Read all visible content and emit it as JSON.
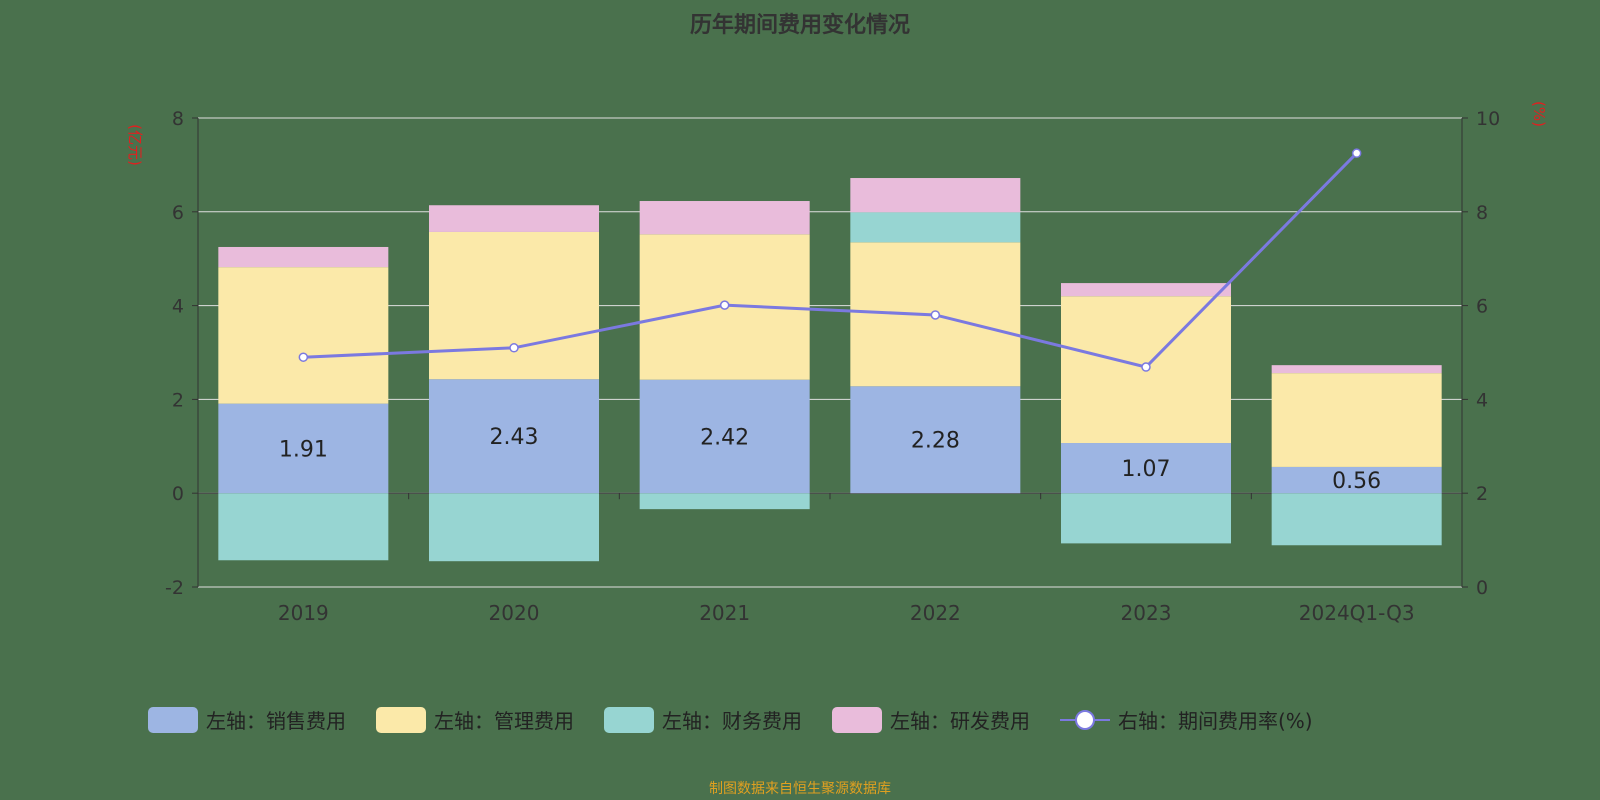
{
  "chart_data": {
    "type": "bar",
    "title": "历年期间费用变化情况",
    "categories": [
      "2019",
      "2020",
      "2021",
      "2022",
      "2023",
      "2024Q1-Q3"
    ],
    "left_axis": {
      "label": "(亿元)",
      "ylim": [
        -2,
        8
      ],
      "ticks": [
        -2,
        0,
        2,
        4,
        6,
        8
      ]
    },
    "right_axis": {
      "label": "(%)",
      "ylim": [
        0,
        10
      ],
      "ticks": [
        0,
        2,
        4,
        6,
        8,
        10
      ]
    },
    "grid": true,
    "legend_placement": "bottom",
    "series": [
      {
        "name": "左轴：销售费用",
        "color": "#9db5e3",
        "values": [
          1.91,
          2.43,
          2.42,
          2.28,
          1.07,
          0.56
        ],
        "labels": [
          "1.91",
          "2.43",
          "2.42",
          "2.28",
          "1.07",
          "0.56"
        ]
      },
      {
        "name": "左轴：管理费用",
        "color": "#fbe9a9",
        "values": [
          2.91,
          3.14,
          3.1,
          3.07,
          3.13,
          2.0
        ]
      },
      {
        "name": "左轴：财务费用",
        "color": "#97d5d2",
        "values": [
          -1.43,
          -1.45,
          -0.34,
          0.64,
          -1.07,
          -1.11
        ]
      },
      {
        "name": "左轴：研发费用",
        "color": "#e9bcdb",
        "values": [
          0.43,
          0.57,
          0.71,
          0.73,
          0.28,
          0.17
        ]
      },
      {
        "name": "右轴：期间费用率(%)",
        "type": "line",
        "axis": "right",
        "color": "#7b79e0",
        "values": [
          4.9,
          5.1,
          6.01,
          5.8,
          4.69,
          9.25
        ]
      }
    ]
  },
  "footer": "制图数据来自恒生聚源数据库"
}
